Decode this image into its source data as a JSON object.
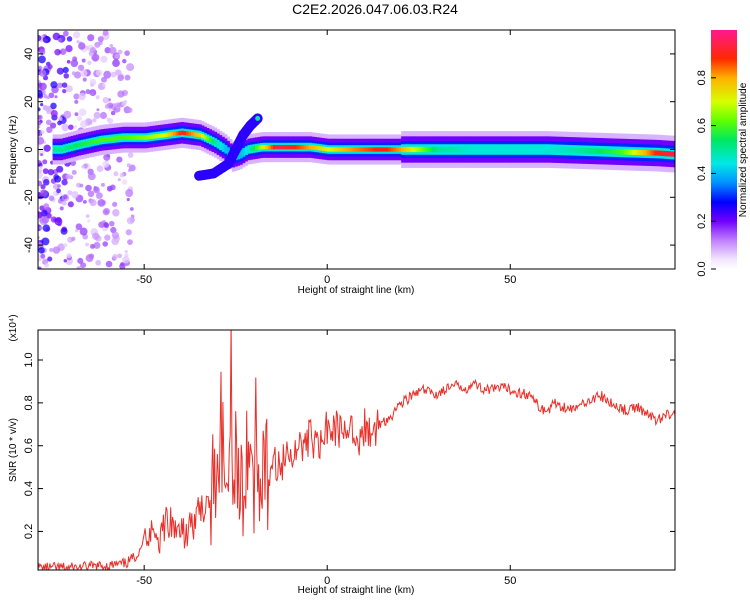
{
  "title": "C2E2.2026.047.06.03.R24",
  "colorbar": {
    "label": "Normalized spectral amplitude",
    "ticks": [
      "0.0",
      "0.2",
      "0.4",
      "0.6",
      "0.8"
    ],
    "tick_values": [
      0.0,
      0.2,
      0.4,
      0.6,
      0.8
    ],
    "colormap": "rainbow: white-violet-blue-cyan-green-yellow-red-magenta"
  },
  "chart_data": [
    {
      "type": "heatmap",
      "xlabel": "Height of straight line (km)",
      "ylabel": "Frequency (Hz)",
      "xlim": [
        -79,
        95
      ],
      "ylim": [
        -50,
        50
      ],
      "xticks": [
        "-50",
        "0",
        "50"
      ],
      "xtick_values": [
        -50,
        0,
        50
      ],
      "yticks": [
        "-40",
        "-20",
        "0",
        "20",
        "40"
      ],
      "ytick_values": [
        -40,
        -20,
        0,
        20,
        40
      ],
      "ridge": {
        "x": [
          -73,
          -68,
          -62,
          -56,
          -50,
          -45,
          -40,
          -35,
          -31,
          -28,
          -26,
          -24,
          -22,
          -18,
          -14,
          -10,
          -5,
          0,
          5,
          10,
          15,
          20,
          30,
          40,
          50,
          60,
          70,
          80,
          90,
          95
        ],
        "frequency": [
          0,
          2,
          4,
          5,
          5,
          6,
          7,
          6,
          3,
          0,
          -3,
          -2,
          0,
          1,
          1,
          1,
          1,
          0,
          0,
          0,
          0,
          0,
          0,
          0,
          0,
          0,
          -0.5,
          -1,
          -1.5,
          -2
        ],
        "amplitude": [
          0.5,
          0.55,
          0.6,
          0.6,
          0.65,
          0.7,
          0.9,
          0.75,
          0.5,
          0.4,
          0.4,
          0.4,
          0.45,
          0.7,
          0.95,
          0.9,
          0.8,
          0.7,
          0.8,
          0.85,
          0.9,
          0.8,
          0.5,
          0.45,
          0.45,
          0.45,
          0.5,
          0.6,
          0.9,
          0.95
        ]
      },
      "branches": [
        {
          "x": [
            -35,
            -31,
            -27,
            -25,
            -23,
            -21,
            -19
          ],
          "frequency": [
            -11,
            -10,
            -6,
            0,
            6,
            10,
            13
          ]
        }
      ]
    },
    {
      "type": "line",
      "xlabel": "Height of straight line (km)",
      "ylabel": "SNR (10 * v/v)",
      "yscale_label": "(x10⁴)",
      "xlim": [
        -79,
        95
      ],
      "ylim": [
        0.02,
        1.14
      ],
      "xticks": [
        "-50",
        "0",
        "50"
      ],
      "xtick_values": [
        -50,
        0,
        50
      ],
      "yticks": [
        "0.2",
        "0.4",
        "0.6",
        "0.8",
        "1.0"
      ],
      "ytick_values": [
        0.2,
        0.4,
        0.6,
        0.8,
        1.0
      ],
      "series": [
        {
          "color": "#e8302a",
          "x": [
            -79,
            -70,
            -60,
            -55,
            -52,
            -50,
            -48,
            -46,
            -44,
            -42,
            -40,
            -38,
            -36,
            -34,
            -32,
            -30,
            -28,
            -26,
            -24,
            -22,
            -20,
            -18,
            -16,
            -14,
            -12,
            -10,
            -8,
            -6,
            -4,
            -2,
            0,
            2,
            4,
            6,
            8,
            10,
            12,
            14,
            16,
            18,
            20,
            22,
            24,
            26,
            28,
            30,
            32,
            35,
            38,
            40,
            42,
            45,
            48,
            50,
            52,
            55,
            58,
            60,
            62,
            65,
            68,
            70,
            72,
            75,
            78,
            80,
            82,
            85,
            88,
            90,
            92,
            95
          ],
          "values": [
            0.03,
            0.03,
            0.04,
            0.05,
            0.09,
            0.17,
            0.22,
            0.16,
            0.25,
            0.2,
            0.18,
            0.22,
            0.28,
            0.3,
            0.38,
            0.45,
            0.6,
            0.55,
            0.48,
            0.42,
            0.45,
            0.5,
            0.44,
            0.52,
            0.55,
            0.58,
            0.55,
            0.6,
            0.65,
            0.6,
            0.68,
            0.7,
            0.66,
            0.72,
            0.62,
            0.68,
            0.64,
            0.7,
            0.72,
            0.75,
            0.8,
            0.82,
            0.84,
            0.86,
            0.85,
            0.84,
            0.86,
            0.88,
            0.87,
            0.89,
            0.87,
            0.86,
            0.87,
            0.86,
            0.85,
            0.84,
            0.78,
            0.76,
            0.8,
            0.78,
            0.77,
            0.8,
            0.82,
            0.83,
            0.79,
            0.78,
            0.76,
            0.78,
            0.74,
            0.72,
            0.74,
            0.76
          ]
        }
      ]
    }
  ]
}
